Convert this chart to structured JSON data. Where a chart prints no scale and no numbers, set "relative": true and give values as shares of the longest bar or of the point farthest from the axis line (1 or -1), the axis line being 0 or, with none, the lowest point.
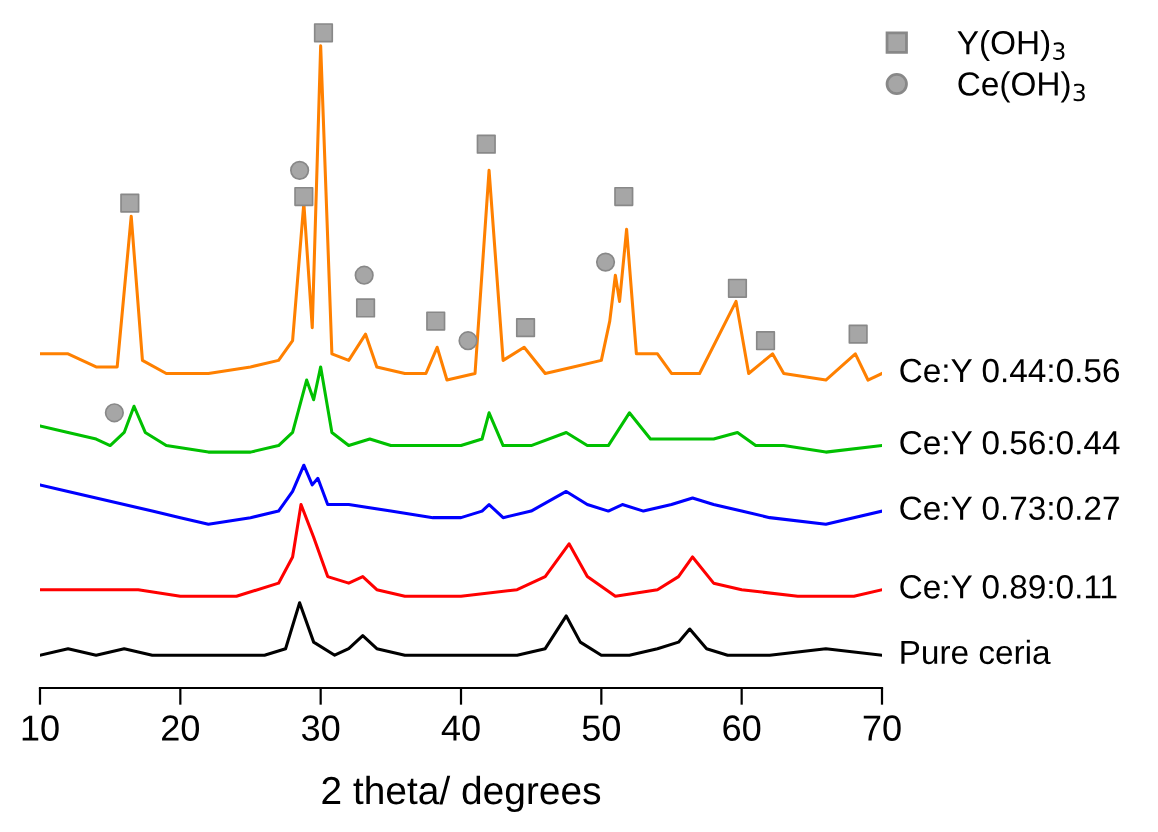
{
  "chart_data": {
    "type": "line",
    "relative": true,
    "xlabel": "2 theta/ degrees",
    "xlim": [
      10,
      70
    ],
    "xticks": [
      10,
      20,
      30,
      40,
      50,
      60,
      70
    ],
    "tick_labels": "x",
    "grid": false,
    "legend": "top right",
    "series": [
      {
        "name": "Ce:Y 0.44:0.56",
        "color": "#ff8000",
        "x": [
          10,
          12,
          14,
          15.5,
          16.5,
          17.3,
          19,
          22,
          25,
          27,
          28,
          28.8,
          29.4,
          30,
          30.8,
          32,
          33.2,
          34,
          36,
          37.5,
          38.3,
          39,
          41,
          42,
          43,
          44.5,
          46,
          48,
          50,
          50.6,
          51,
          51.3,
          51.8,
          52.5,
          54,
          55,
          57,
          59.6,
          60.5,
          62.2,
          63,
          66,
          68.1,
          69,
          70
        ],
        "values": [
          0.51,
          0.51,
          0.49,
          0.49,
          0.72,
          0.5,
          0.48,
          0.48,
          0.49,
          0.5,
          0.53,
          0.74,
          0.55,
          0.98,
          0.51,
          0.5,
          0.54,
          0.49,
          0.48,
          0.48,
          0.52,
          0.47,
          0.48,
          0.79,
          0.5,
          0.52,
          0.48,
          0.49,
          0.5,
          0.56,
          0.63,
          0.59,
          0.7,
          0.51,
          0.51,
          0.48,
          0.48,
          0.59,
          0.48,
          0.51,
          0.48,
          0.47,
          0.51,
          0.47,
          0.48
        ]
      },
      {
        "name": "Ce:Y 0.56:0.44",
        "color": "#00c000",
        "x": [
          10,
          12,
          14,
          15,
          16,
          16.7,
          17.5,
          19,
          22,
          25,
          27,
          28,
          29,
          29.5,
          30,
          30.8,
          32,
          33.5,
          35,
          38,
          40,
          41.5,
          42,
          43,
          45,
          47.5,
          49,
          50.5,
          52,
          53.5,
          56,
          58,
          59.7,
          61,
          63,
          66,
          70
        ],
        "values": [
          0.4,
          0.39,
          0.38,
          0.37,
          0.39,
          0.43,
          0.39,
          0.37,
          0.36,
          0.36,
          0.37,
          0.39,
          0.47,
          0.44,
          0.49,
          0.39,
          0.37,
          0.38,
          0.37,
          0.37,
          0.37,
          0.38,
          0.42,
          0.37,
          0.37,
          0.39,
          0.37,
          0.37,
          0.42,
          0.38,
          0.38,
          0.38,
          0.39,
          0.37,
          0.37,
          0.36,
          0.37
        ]
      },
      {
        "name": "Ce:Y 0.73:0.27",
        "color": "#0000ff",
        "x": [
          10,
          12,
          14,
          16,
          18,
          20,
          22,
          25,
          27,
          28,
          28.8,
          29.4,
          29.8,
          30.5,
          32,
          35,
          38,
          40,
          41.5,
          42,
          43,
          45,
          47.5,
          49,
          50.5,
          51.5,
          53,
          55,
          56.5,
          58,
          60,
          62,
          66,
          70
        ],
        "values": [
          0.31,
          0.3,
          0.29,
          0.28,
          0.27,
          0.26,
          0.25,
          0.26,
          0.27,
          0.3,
          0.34,
          0.31,
          0.32,
          0.28,
          0.28,
          0.27,
          0.26,
          0.26,
          0.27,
          0.28,
          0.26,
          0.27,
          0.3,
          0.28,
          0.27,
          0.28,
          0.27,
          0.28,
          0.29,
          0.28,
          0.27,
          0.26,
          0.25,
          0.27
        ]
      },
      {
        "name": "Ce:Y 0.89:0.11",
        "color": "#ff0000",
        "x": [
          10,
          12,
          15,
          17,
          20,
          24,
          27,
          28,
          28.6,
          29.5,
          30.5,
          32,
          33,
          34,
          36,
          40,
          44,
          46,
          47.7,
          49,
          51,
          54,
          55.5,
          56.5,
          58,
          60,
          64,
          68,
          70
        ],
        "values": [
          0.15,
          0.15,
          0.15,
          0.15,
          0.14,
          0.14,
          0.16,
          0.2,
          0.28,
          0.23,
          0.17,
          0.16,
          0.17,
          0.15,
          0.14,
          0.14,
          0.15,
          0.17,
          0.22,
          0.17,
          0.14,
          0.15,
          0.17,
          0.2,
          0.16,
          0.15,
          0.14,
          0.14,
          0.15
        ]
      },
      {
        "name": "Pure ceria",
        "color": "#000000",
        "x": [
          10,
          12,
          14,
          16,
          18,
          20,
          22,
          24,
          26,
          27.5,
          28.5,
          29.5,
          31,
          32,
          33,
          34,
          36,
          40,
          44,
          46,
          47.5,
          48.5,
          50,
          52,
          54,
          55.5,
          56.3,
          57.5,
          59,
          62,
          66,
          70
        ],
        "values": [
          0.05,
          0.06,
          0.05,
          0.06,
          0.05,
          0.05,
          0.05,
          0.05,
          0.05,
          0.06,
          0.13,
          0.07,
          0.05,
          0.06,
          0.08,
          0.06,
          0.05,
          0.05,
          0.05,
          0.06,
          0.11,
          0.07,
          0.05,
          0.05,
          0.06,
          0.07,
          0.09,
          0.06,
          0.05,
          0.05,
          0.06,
          0.05
        ]
      },
      {
        "name": "Y(OH)$_{3}$",
        "type": "scatter",
        "marker": "square",
        "color": "#a6a6a6",
        "x": [
          16.4,
          28.8,
          30.2,
          33.2,
          38.2,
          41.8,
          44.6,
          51.6,
          59.7,
          61.7,
          68.3
        ],
        "values": [
          0.74,
          0.75,
          1.0,
          0.58,
          0.56,
          0.83,
          0.55,
          0.75,
          0.61,
          0.53,
          0.54
        ]
      },
      {
        "name": "Ce(OH)$_{3}$",
        "type": "scatter",
        "marker": "circle",
        "color": "#a6a6a6",
        "x": [
          28.5,
          33.1,
          40.5,
          15.3,
          50.3
        ],
        "values": [
          0.79,
          0.63,
          0.53,
          0.42,
          0.65
        ]
      }
    ]
  }
}
